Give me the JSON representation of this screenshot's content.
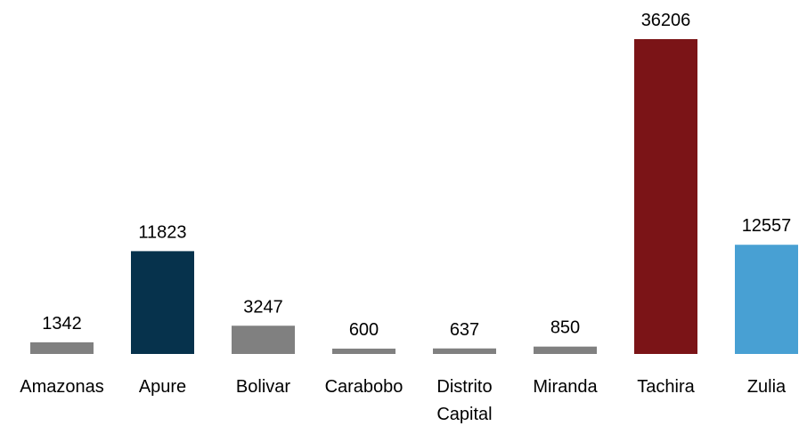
{
  "chart_data": {
    "type": "bar",
    "title": "",
    "xlabel": "",
    "ylabel": "",
    "categories": [
      "Amazonas",
      "Apure",
      "Bolivar",
      "Carabobo",
      "Distrito Capital",
      "Miranda",
      "Tachira",
      "Zulia"
    ],
    "category_lines": [
      [
        "Amazonas"
      ],
      [
        "Apure"
      ],
      [
        "Bolivar"
      ],
      [
        "Carabobo"
      ],
      [
        "Distrito",
        "Capital"
      ],
      [
        "Miranda"
      ],
      [
        "Tachira"
      ],
      [
        "Zulia"
      ]
    ],
    "values": [
      1342,
      11823,
      3247,
      600,
      637,
      850,
      36206,
      12557
    ],
    "value_labels": [
      "1342",
      "11823",
      "3247",
      "600",
      "637",
      "850",
      "36206",
      "12557"
    ],
    "colors": [
      "#808080",
      "#06324C",
      "#808080",
      "#808080",
      "#808080",
      "#808080",
      "#7B1417",
      "#48A0D3"
    ],
    "ylim": [
      0,
      36206
    ],
    "grid": false,
    "legend": "none"
  }
}
